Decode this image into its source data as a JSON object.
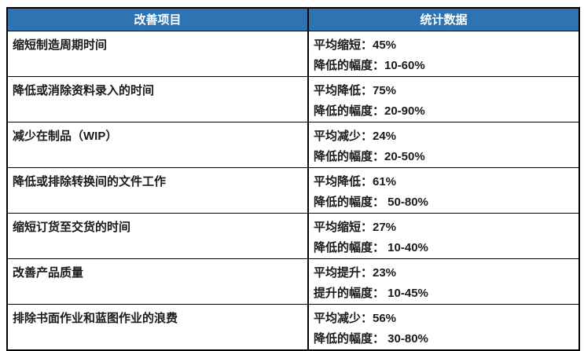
{
  "table": {
    "headers": [
      "改善项目",
      "统计数据"
    ],
    "rows": [
      {
        "item": "缩短制造周期时间",
        "stats": [
          "平均缩短：45%",
          "降低的幅度：10-60%"
        ]
      },
      {
        "item": "降低或消除资料录入的时间",
        "stats": [
          "平均降低：75%",
          "降低的幅度：20-90%"
        ]
      },
      {
        "item": "减少在制品（WIP）",
        "stats": [
          "平均减少：24%",
          "降低的幅度：20-50%"
        ]
      },
      {
        "item": "降低或排除转换间的文件工作",
        "stats": [
          "平均降低：61%",
          "降低的幅度： 50-80%"
        ]
      },
      {
        "item": "缩短订货至交货的时间",
        "stats": [
          "平均缩短：27%",
          "降低的幅度： 10-40%"
        ]
      },
      {
        "item": "改善产品质量",
        "stats": [
          "平均提升：23%",
          "提升的幅度： 10-45%"
        ]
      },
      {
        "item": "排除书面作业和蓝图作业的浪费",
        "stats": [
          "平均减少：56%",
          "降低的幅度： 30-80%"
        ]
      }
    ]
  },
  "colors": {
    "header_bg": "#2E73B2",
    "header_text": "#FFFFFF",
    "border": "#000000",
    "body_text": "#1A1A1A",
    "page_bg": "#FFFFFF"
  }
}
